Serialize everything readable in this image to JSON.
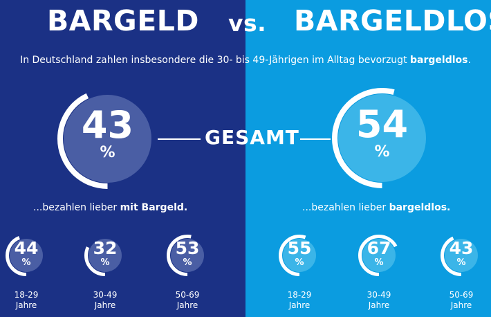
{
  "headline": {
    "left": "BARGELD",
    "vs": "vs.",
    "right": "BARGELDLOS"
  },
  "intro": {
    "text": "In Deutschland zahlen insbesondere die 30- bis 49-Jährigen im Alltag bevorzugt ",
    "bold": "bargeldlos",
    "end": "."
  },
  "gesamt_label": "GESAMT",
  "captions": {
    "left_text": "...bezahlen lieber ",
    "left_bold": "mit Bargeld.",
    "right_text": "...bezahlen lieber ",
    "right_bold": "bargeldlos."
  },
  "colors": {
    "left_background": "#1b3185",
    "right_background": "#0b9ce0",
    "left_circle_fill": "#4a5ea4",
    "right_circle_fill": "#3bb5e8",
    "ring_stroke": "#ffffff"
  },
  "chart_data": [
    {
      "type": "donut",
      "id": "overall",
      "title": "GESAMT",
      "unit": "%",
      "series": [
        {
          "name": "mit Bargeld",
          "value": 43
        },
        {
          "name": "bargeldlos",
          "value": 54
        }
      ]
    },
    {
      "type": "donut",
      "id": "mit_bargeld_by_age",
      "unit": "%",
      "categories": [
        "18-29 Jahre",
        "30-49 Jahre",
        "50-69 Jahre"
      ],
      "values": [
        44,
        32,
        53
      ]
    },
    {
      "type": "donut",
      "id": "bargeldlos_by_age",
      "unit": "%",
      "categories": [
        "18-29 Jahre",
        "30-49 Jahre",
        "50-69 Jahre"
      ],
      "values": [
        55,
        67,
        43
      ]
    }
  ],
  "age_labels": [
    {
      "range": "18-29",
      "unit": "Jahre"
    },
    {
      "range": "30-49",
      "unit": "Jahre"
    },
    {
      "range": "50-69",
      "unit": "Jahre"
    }
  ]
}
